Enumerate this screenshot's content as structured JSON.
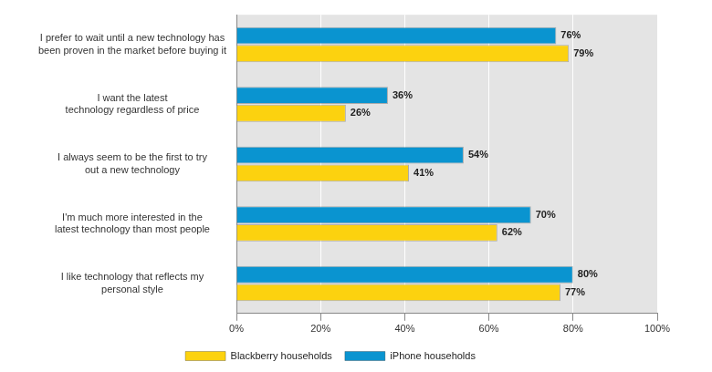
{
  "chart_data": {
    "type": "bar",
    "orientation": "horizontal",
    "categories": [
      [
        "I prefer to wait until a new technology has",
        "been proven in the market before buying it"
      ],
      [
        "I want the latest",
        "technology regardless of price"
      ],
      [
        "I always seem to be the first to try",
        "out a new technology"
      ],
      [
        "I'm much more interested in the",
        "latest technology than most people"
      ],
      [
        "I like technology that reflects my",
        "personal style"
      ]
    ],
    "series": [
      {
        "name": "iPhone households",
        "color": "#0a94d0",
        "values": [
          76,
          36,
          54,
          70,
          80
        ],
        "value_labels": [
          "76%",
          "36%",
          "54%",
          "70%",
          "80%"
        ]
      },
      {
        "name": "Blackberry households",
        "color": "#fcd20f",
        "values": [
          79,
          26,
          41,
          62,
          77
        ],
        "value_labels": [
          "79%",
          "26%",
          "41%",
          "62%",
          "77%"
        ]
      }
    ],
    "xlim": [
      0,
      100
    ],
    "xticks": [
      {
        "value": 0,
        "label": "0%"
      },
      {
        "value": 20,
        "label": "20%"
      },
      {
        "value": 40,
        "label": "40%"
      },
      {
        "value": 60,
        "label": "60%"
      },
      {
        "value": 80,
        "label": "80%"
      },
      {
        "value": 100,
        "label": "100%"
      }
    ],
    "grid": true,
    "legend": "bottom",
    "data_labels": true
  }
}
